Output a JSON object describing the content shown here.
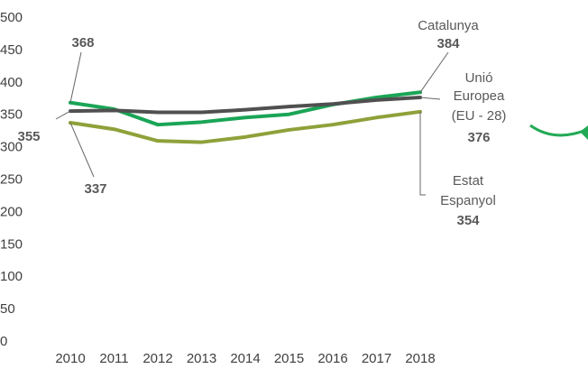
{
  "chart_data": {
    "type": "line",
    "x": [
      "2010",
      "2011",
      "2012",
      "2013",
      "2014",
      "2015",
      "2016",
      "2017",
      "2018"
    ],
    "ylim": [
      0,
      500
    ],
    "yticks": [
      0,
      50,
      100,
      150,
      200,
      250,
      300,
      350,
      400,
      450,
      500
    ],
    "grid": false,
    "series": [
      {
        "name": "Catalunya",
        "color": "#1aa556",
        "values": [
          368,
          358,
          334,
          338,
          345,
          350,
          365,
          376,
          384
        ],
        "label_start": "368",
        "label_end": "384"
      },
      {
        "name_lines": [
          "Unió",
          "Europea",
          "(EU - 28)"
        ],
        "color": "#505050",
        "values": [
          355,
          356,
          353,
          353,
          357,
          362,
          366,
          372,
          376
        ],
        "label_start": "355",
        "label_end": "376"
      },
      {
        "name_lines": [
          "Estat",
          "Espanyol"
        ],
        "color": "#8ea13a",
        "values": [
          337,
          327,
          309,
          307,
          315,
          326,
          334,
          345,
          354
        ],
        "label_start": "337",
        "label_end": "354"
      }
    ],
    "annotation_arrow_color": "#22aa55"
  }
}
